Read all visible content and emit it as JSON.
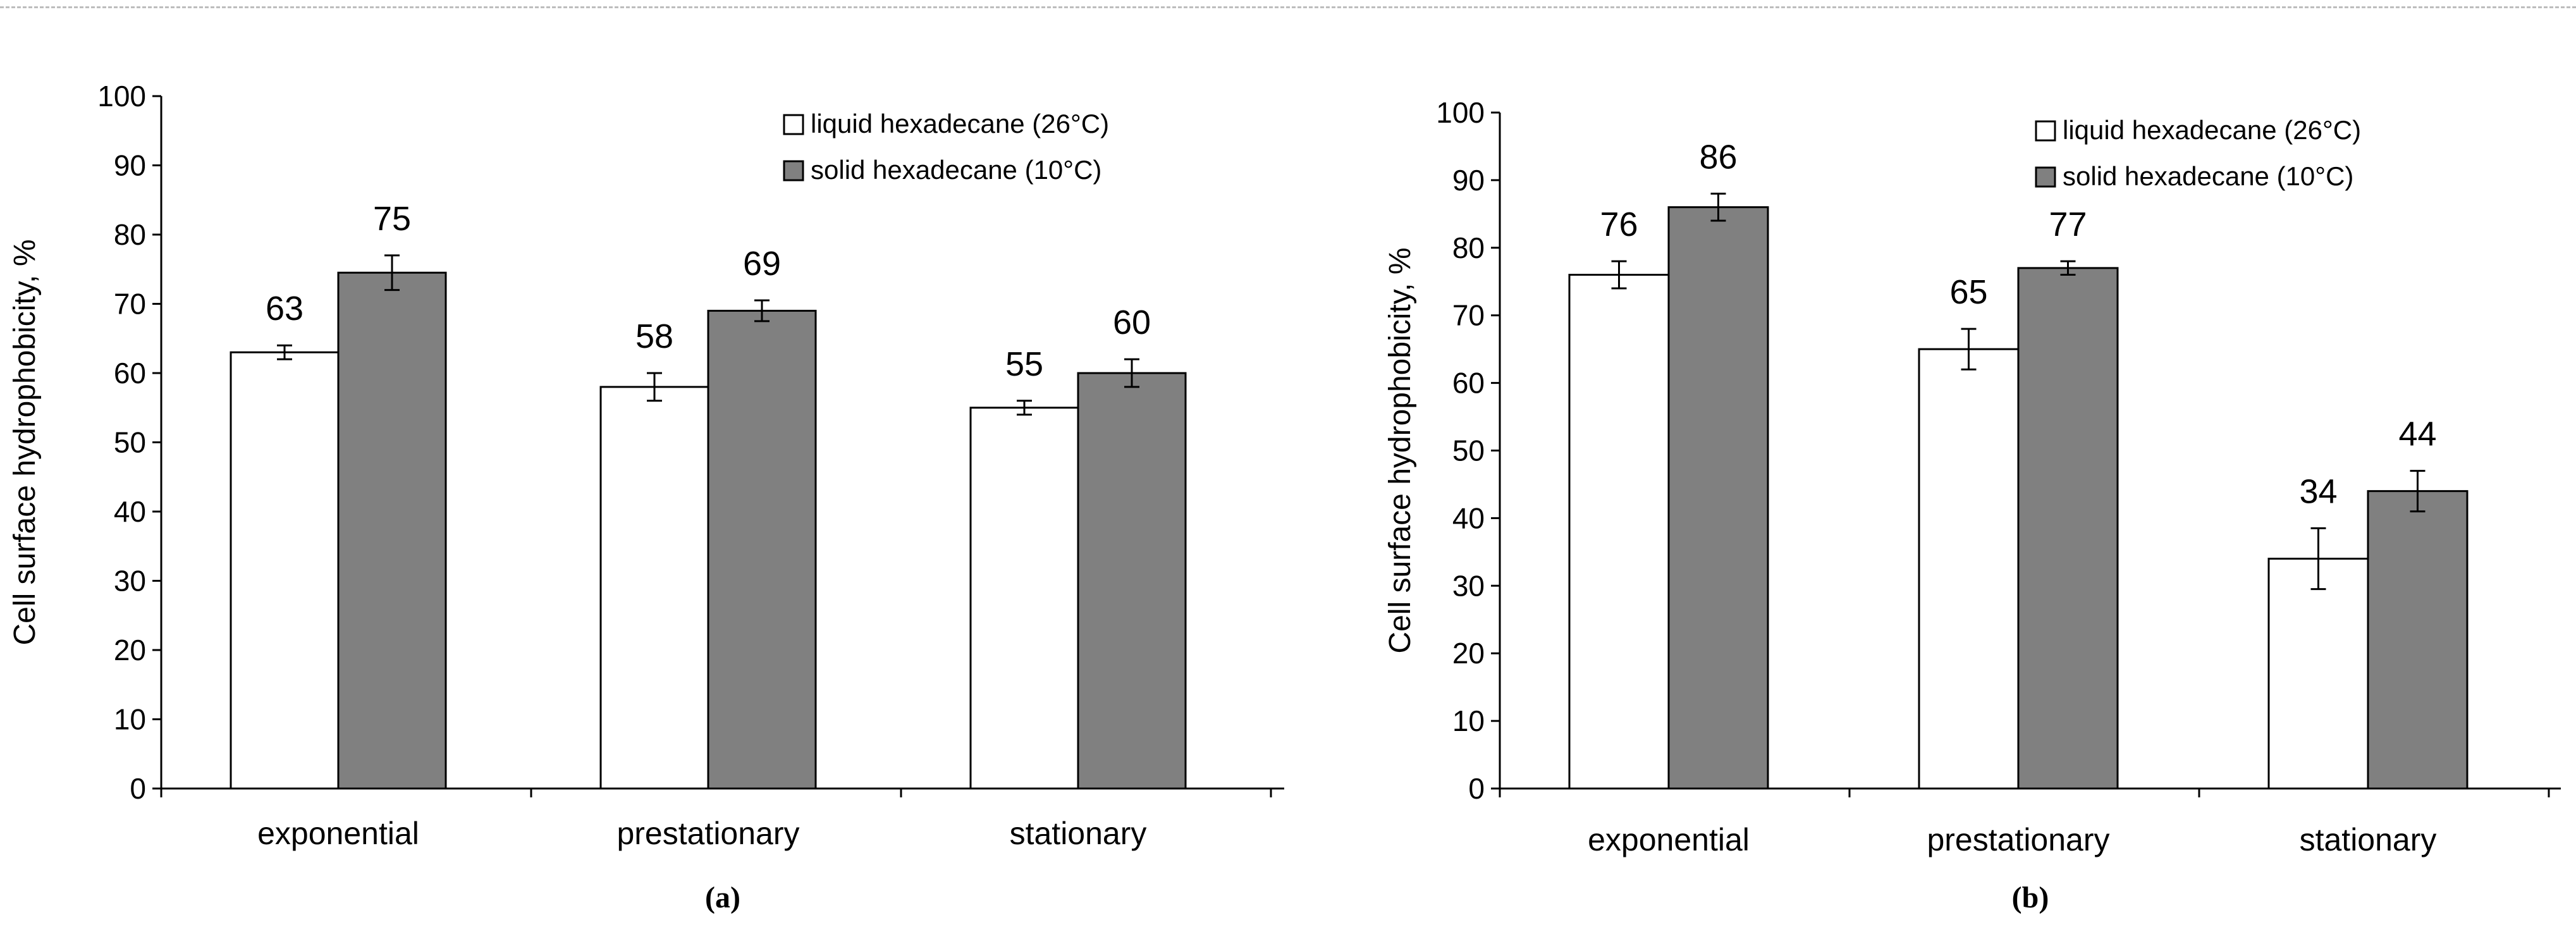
{
  "chart_data": [
    {
      "type": "bar",
      "panel_label": "(a)",
      "ylabel": "Cell surface hydrophobicity, %",
      "xlabel": "",
      "ylim": [
        0,
        100
      ],
      "yticks": [
        0,
        10,
        20,
        30,
        40,
        50,
        60,
        70,
        80,
        90,
        100
      ],
      "categories": [
        "exponential",
        "prestationary",
        "stationary"
      ],
      "legend_position": "top-right",
      "grid": false,
      "series": [
        {
          "name": "liquid hexadecane  (26°C)",
          "color": "#ffffff",
          "values": [
            63,
            58,
            55
          ],
          "errors": [
            1,
            2,
            1
          ],
          "labels": [
            "63",
            "58",
            "55"
          ]
        },
        {
          "name": "solid hexadecane  (10°C)",
          "color": "#808080",
          "values": [
            74.5,
            69,
            60
          ],
          "errors": [
            2.5,
            1.5,
            2
          ],
          "labels": [
            "75",
            "69",
            "60"
          ]
        }
      ]
    },
    {
      "type": "bar",
      "panel_label": "(b)",
      "ylabel": "Cell surface hydrophobicity, %",
      "xlabel": "",
      "ylim": [
        0,
        100
      ],
      "yticks": [
        0,
        10,
        20,
        30,
        40,
        50,
        60,
        70,
        80,
        90,
        100
      ],
      "categories": [
        "exponential",
        "prestationary",
        "stationary"
      ],
      "legend_position": "top-right",
      "grid": false,
      "series": [
        {
          "name": "liquid hexadecane  (26°C)",
          "color": "#ffffff",
          "values": [
            76,
            65,
            34
          ],
          "errors": [
            2,
            3,
            4.5
          ],
          "labels": [
            "76",
            "65",
            "34"
          ]
        },
        {
          "name": "solid hexadecane  (10°C)",
          "color": "#808080",
          "values": [
            86,
            77,
            44
          ],
          "errors": [
            2,
            1,
            3
          ],
          "labels": [
            "86",
            "77",
            "44"
          ]
        }
      ]
    }
  ]
}
